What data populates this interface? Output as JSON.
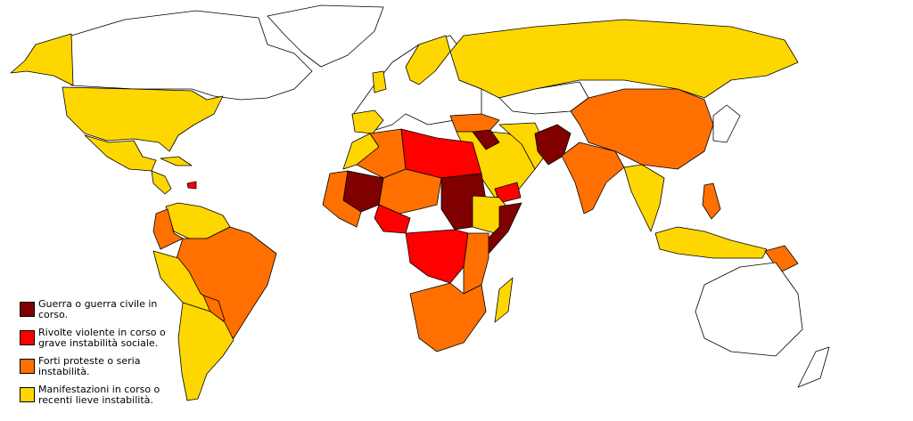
{
  "legend": {
    "items": [
      {
        "label": "Guerra o guerra civile in corso.",
        "color": "#800000"
      },
      {
        "label": "Rivolte violente in corso o grave instabilità sociale.",
        "color": "#ff0000"
      },
      {
        "label": "Forti proteste o seria instabilità.",
        "color": "#ff7000"
      },
      {
        "label": "Manifestazioni in corso o recenti lieve instabilità.",
        "color": "#ffd700"
      }
    ]
  }
}
